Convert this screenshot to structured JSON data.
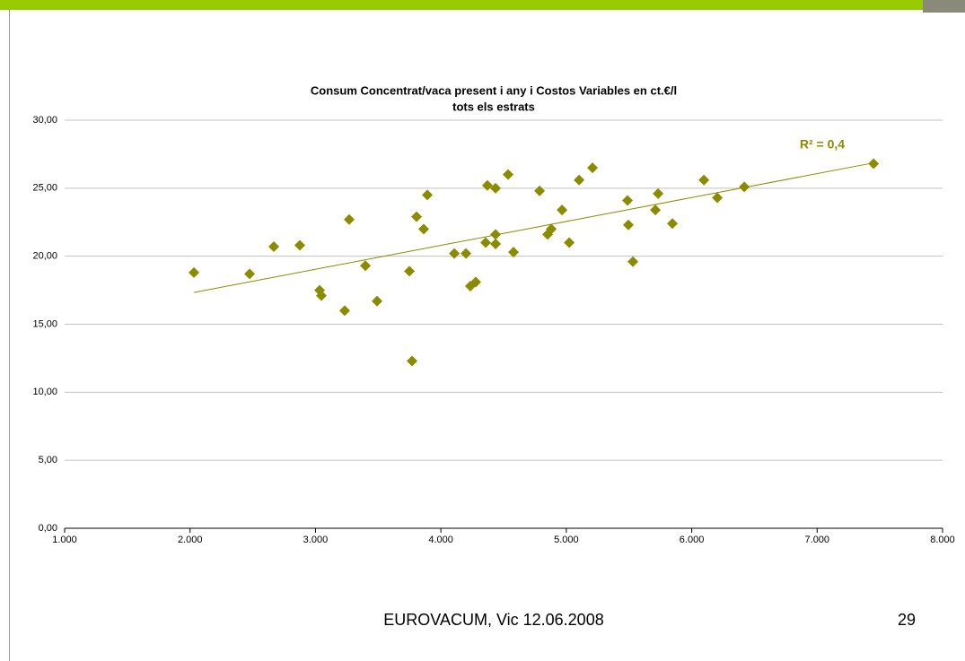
{
  "chart_data": {
    "type": "scatter",
    "title": "Consum Concentrat/vaca present i any i Costos Variables en ct.€/l",
    "subtitle": "tots els estrats",
    "annotation": "R² = 0,4",
    "trendline": true,
    "color": "#8b8b00",
    "grid": true,
    "x": [
      2031,
      2475,
      2668,
      2875,
      3033,
      3047,
      3233,
      3269,
      3398,
      3491,
      3749,
      3770,
      3806,
      3863,
      3892,
      4107,
      4200,
      4235,
      4278,
      4357,
      4371,
      4436,
      4436,
      4436,
      4536,
      4579,
      4787,
      4851,
      4880,
      4966,
      5023,
      5102,
      5209,
      5488,
      5495,
      5531,
      5710,
      5732,
      5846,
      6097,
      6204,
      6419,
      7450
    ],
    "values": [
      18.8,
      18.7,
      20.7,
      20.8,
      17.5,
      17.1,
      16.0,
      22.7,
      19.3,
      16.7,
      18.9,
      12.3,
      22.9,
      22.0,
      24.5,
      20.2,
      20.2,
      17.8,
      18.1,
      21.0,
      25.2,
      21.6,
      20.9,
      25.0,
      26.0,
      20.3,
      24.8,
      21.6,
      22.0,
      23.4,
      21.0,
      25.6,
      26.5,
      24.1,
      22.3,
      19.6,
      23.4,
      24.6,
      22.4,
      25.6,
      24.3,
      25.1,
      26.8
    ],
    "xlim": [
      1000,
      8000
    ],
    "xticks": [
      {
        "value": 1000,
        "label": "1.000"
      },
      {
        "value": 2000,
        "label": "2.000"
      },
      {
        "value": 3000,
        "label": "3.000"
      },
      {
        "value": 4000,
        "label": "4.000"
      },
      {
        "value": 5000,
        "label": "5.000"
      },
      {
        "value": 6000,
        "label": "6.000"
      },
      {
        "value": 7000,
        "label": "7.000"
      },
      {
        "value": 8000,
        "label": "8.000"
      }
    ],
    "ylim": [
      0,
      30
    ],
    "yticks": [
      {
        "value": 0,
        "label": "0,00"
      },
      {
        "value": 5,
        "label": "5,00"
      },
      {
        "value": 10,
        "label": "10,00"
      },
      {
        "value": 15,
        "label": "15,00"
      },
      {
        "value": 20,
        "label": "20,00"
      },
      {
        "value": 25,
        "label": "25,00"
      },
      {
        "value": 30,
        "label": "30,00"
      }
    ]
  },
  "footer": {
    "text": "EUROVACUM, Vic 12.06.2008",
    "page": "29"
  }
}
